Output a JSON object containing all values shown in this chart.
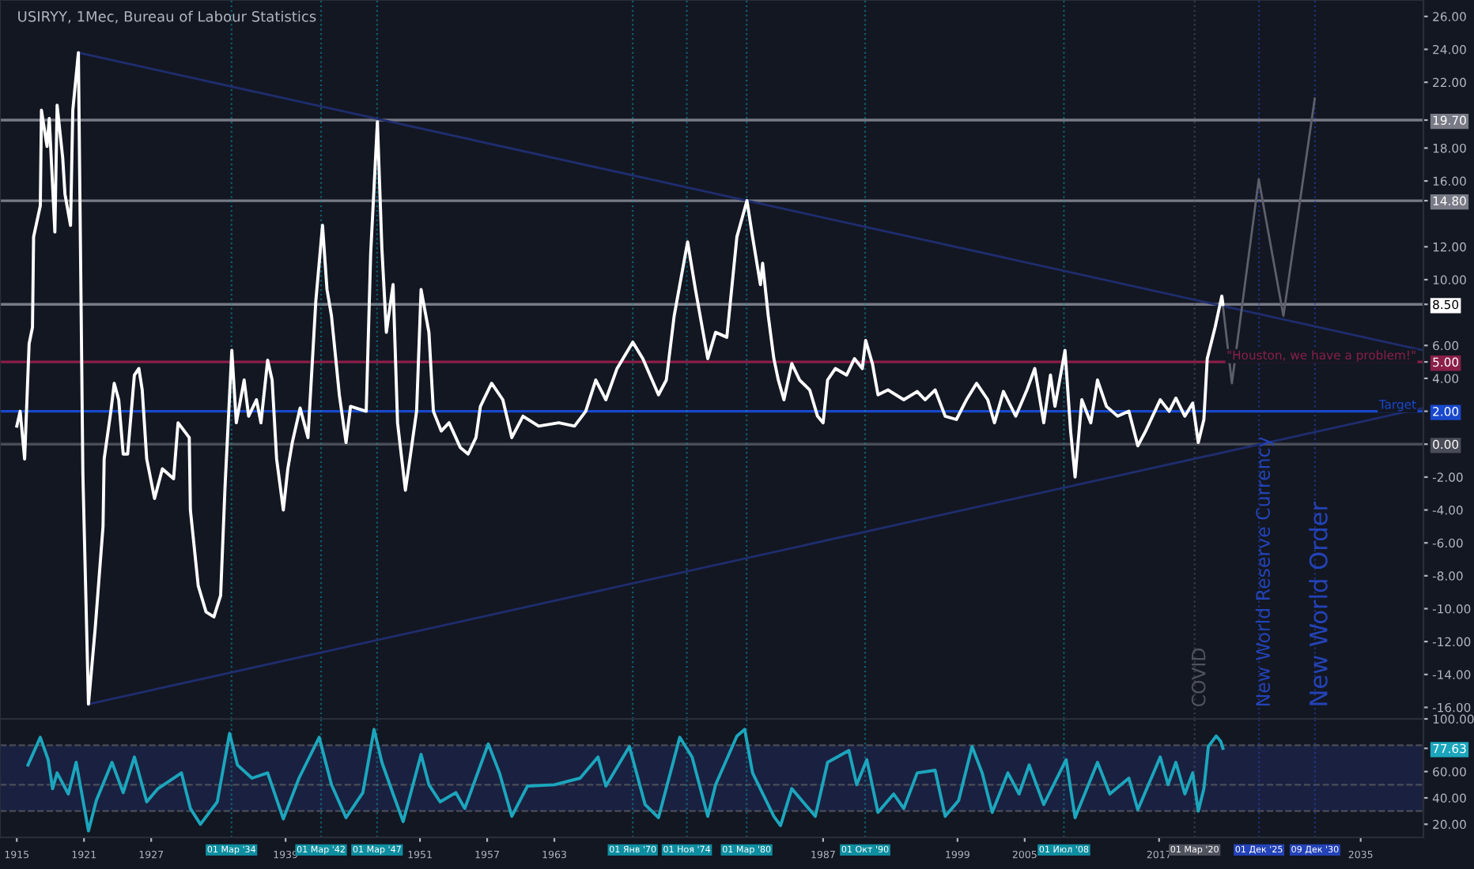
{
  "chart_data": [
    {
      "type": "line",
      "title": "USIRYY, 1Мес, Bureau of Labour Statistics",
      "xlim": [
        1913.5,
        2040.6
      ],
      "ylim": [
        -16.7,
        27.0
      ],
      "tick_labels": "y",
      "yticks": [
        {
          "value": -16,
          "label": "-16.00"
        },
        {
          "value": -14,
          "label": "-14.00"
        },
        {
          "value": -12,
          "label": "-12.00"
        },
        {
          "value": -10,
          "label": "-10.00"
        },
        {
          "value": -8,
          "label": "-8.00"
        },
        {
          "value": -6,
          "label": "-6.00"
        },
        {
          "value": -4,
          "label": "-4.00"
        },
        {
          "value": -2,
          "label": "-2.00"
        },
        {
          "value": 0,
          "label": "0.00"
        },
        {
          "value": 2,
          "label": "2.00"
        },
        {
          "value": 4,
          "label": "4.00"
        },
        {
          "value": 5,
          "label": "5.00"
        },
        {
          "value": 6,
          "label": "6.00"
        },
        {
          "value": 8.5,
          "label": "8.50"
        },
        {
          "value": 10,
          "label": "10.00"
        },
        {
          "value": 12,
          "label": "12.00"
        },
        {
          "value": 14.8,
          "label": "14.80"
        },
        {
          "value": 16,
          "label": "16.00"
        },
        {
          "value": 18,
          "label": "18.00"
        },
        {
          "value": 19.7,
          "label": "19.70"
        },
        {
          "value": 22,
          "label": "22.00"
        },
        {
          "value": 24,
          "label": "24.00"
        },
        {
          "value": 26,
          "label": "26.00"
        }
      ],
      "series": [
        {
          "color": "#ffffff",
          "x": [
            1915.0,
            1915.3,
            1915.7,
            1916.1,
            1916.4,
            1916.5,
            1917.1,
            1917.2,
            1917.7,
            1917.9,
            1918.4,
            1918.6,
            1919.1,
            1919.3,
            1919.8,
            1920.0,
            1920.5,
            1920.9,
            1921.4,
            1922.0,
            1922.7,
            1922.8,
            1923.4,
            1923.7,
            1924.1,
            1924.5,
            1924.9,
            1925.5,
            1925.9,
            1926.2,
            1926.6,
            1927.3,
            1928.0,
            1929.0,
            1929.4,
            1930.4,
            1930.5,
            1931.2,
            1931.9,
            1932.6,
            1933.2,
            1933.6,
            1934.2,
            1934.6,
            1935.3,
            1935.7,
            1936.4,
            1936.8,
            1937.4,
            1937.8,
            1938.2,
            1938.8,
            1939.2,
            1939.6,
            1940.3,
            1941.0,
            1941.7,
            1942.3,
            1942.7,
            1943.1,
            1943.8,
            1944.4,
            1944.8,
            1946.2,
            1946.6,
            1947.2,
            1947.6,
            1948.0,
            1948.6,
            1949.0,
            1949.7,
            1950.1,
            1950.7,
            1951.1,
            1951.8,
            1952.2,
            1952.9,
            1953.6,
            1954.6,
            1955.3,
            1956.0,
            1956.4,
            1957.4,
            1958.4,
            1959.2,
            1960.2,
            1961.6,
            1963.4,
            1964.8,
            1965.8,
            1966.7,
            1967.6,
            1968.6,
            1970.0,
            1970.9,
            1972.3,
            1973.0,
            1973.7,
            1974.9,
            1975.6,
            1976.7,
            1977.4,
            1978.4,
            1979.3,
            1980.2,
            1980.7,
            1981.4,
            1981.6,
            1982.1,
            1982.6,
            1983.0,
            1983.5,
            1984.2,
            1984.9,
            1985.8,
            1986.5,
            1987.0,
            1987.4,
            1988.1,
            1989.1,
            1989.8,
            1990.5,
            1990.8,
            1991.4,
            1991.9,
            1992.8,
            1994.2,
            1995.4,
            1996.1,
            1997.0,
            1997.9,
            1998.9,
            1999.8,
            2000.7,
            2001.7,
            2002.3,
            2003.1,
            2004.2,
            2005.2,
            2005.9,
            2006.7,
            2007.3,
            2007.7,
            2008.6,
            2009.1,
            2009.5,
            2010.1,
            2010.9,
            2011.5,
            2012.3,
            2013.3,
            2014.3,
            2015.1,
            2015.8,
            2017.1,
            2017.9,
            2018.5,
            2019.3,
            2020.0,
            2020.5,
            2021.0,
            2021.3,
            2022.0,
            2022.6,
            2022.7
          ],
          "values": [
            1.1,
            2.0,
            -0.9,
            6.1,
            7.1,
            12.6,
            14.5,
            20.3,
            18.1,
            19.8,
            12.9,
            20.6,
            17.4,
            15.2,
            13.3,
            20.3,
            23.8,
            -1.8,
            -15.8,
            -11.2,
            -5.0,
            -0.9,
            2.0,
            3.7,
            2.7,
            -0.6,
            -0.6,
            4.2,
            4.6,
            3.3,
            -0.9,
            -3.3,
            -1.5,
            -2.1,
            1.3,
            0.4,
            -4.0,
            -8.6,
            -10.2,
            -10.5,
            -9.2,
            -2.5,
            5.7,
            1.3,
            3.9,
            1.7,
            2.7,
            1.3,
            5.1,
            3.9,
            -0.9,
            -4.0,
            -1.5,
            0.1,
            2.2,
            0.4,
            8.7,
            13.3,
            9.4,
            7.8,
            3.0,
            0.1,
            2.3,
            2.0,
            11.6,
            19.6,
            11.9,
            6.8,
            9.7,
            1.3,
            -2.8,
            -0.9,
            2.0,
            9.4,
            6.8,
            2.0,
            0.8,
            1.3,
            -0.2,
            -0.6,
            0.4,
            2.3,
            3.7,
            2.7,
            0.4,
            1.7,
            1.1,
            1.3,
            1.1,
            2.0,
            3.9,
            2.7,
            4.6,
            6.2,
            5.2,
            3.0,
            3.9,
            7.8,
            12.3,
            9.4,
            5.2,
            6.8,
            6.5,
            12.6,
            14.8,
            12.6,
            9.7,
            11.0,
            7.8,
            5.2,
            3.9,
            2.7,
            4.9,
            3.9,
            3.3,
            1.7,
            1.3,
            3.9,
            4.6,
            4.2,
            5.2,
            4.6,
            6.3,
            4.9,
            3.0,
            3.3,
            2.7,
            3.2,
            2.7,
            3.3,
            1.7,
            1.5,
            2.7,
            3.7,
            2.7,
            1.3,
            3.2,
            1.7,
            3.3,
            4.6,
            1.3,
            4.2,
            2.3,
            5.7,
            0.8,
            -2.0,
            2.7,
            1.3,
            3.9,
            2.3,
            1.7,
            2.0,
            -0.1,
            0.8,
            2.7,
            2.0,
            2.8,
            1.7,
            2.5,
            0.1,
            1.5,
            5.2,
            7.1,
            9.0,
            8.5
          ]
        },
        {
          "type": "line",
          "color": "#1f2d6e",
          "x": [
            1920.5,
            2040.6
          ],
          "values": [
            23.8,
            5.7
          ]
        },
        {
          "type": "line",
          "color": "#1f2d6e",
          "x": [
            1921.4,
            2040.6
          ],
          "values": [
            -15.8,
            2.2
          ]
        },
        {
          "type": "line",
          "color": "#5d606b",
          "x": [
            2022.6,
            2023.5,
            2025.9,
            2028.1,
            2030.9
          ],
          "values": [
            9.0,
            3.7,
            16.1,
            7.8,
            21.0
          ]
        }
      ],
      "ref_lines": [
        {
          "axis": "y",
          "value": 19.7,
          "color": "#787b86",
          "line_style": "solid"
        },
        {
          "axis": "y",
          "value": 14.8,
          "color": "#787b86",
          "line_style": "solid"
        },
        {
          "axis": "y",
          "value": 8.5,
          "color": "#787b86",
          "line_style": "solid"
        },
        {
          "axis": "y",
          "value": 5.0,
          "label": "\"Houston, we have a problem!\"",
          "color": "#8a1f48",
          "line_style": "solid"
        },
        {
          "axis": "y",
          "value": 2.0,
          "label": "Target",
          "color": "#1848cc",
          "line_style": "solid"
        },
        {
          "axis": "y",
          "value": 0.0,
          "color": "#4a4d57",
          "line_style": "solid"
        },
        {
          "axis": "x",
          "value": 1934.17,
          "color": "#0e8ea0",
          "line_style": "dotted"
        },
        {
          "axis": "x",
          "value": 1942.17,
          "color": "#0e8ea0",
          "line_style": "dotted"
        },
        {
          "axis": "x",
          "value": 1947.17,
          "color": "#0e8ea0",
          "line_style": "dotted"
        },
        {
          "axis": "x",
          "value": 1970.0,
          "color": "#0e8ea0",
          "line_style": "dotted"
        },
        {
          "axis": "x",
          "value": 1974.83,
          "color": "#0e8ea0",
          "line_style": "dotted"
        },
        {
          "axis": "x",
          "value": 1980.17,
          "color": "#0e8ea0",
          "line_style": "dotted"
        },
        {
          "axis": "x",
          "value": 1990.75,
          "color": "#0e8ea0",
          "line_style": "dotted"
        },
        {
          "axis": "x",
          "value": 2008.5,
          "color": "#0e8ea0",
          "line_style": "dotted"
        },
        {
          "axis": "x",
          "value": 2020.17,
          "color": "#50535e",
          "line_style": "dotted"
        },
        {
          "axis": "x",
          "value": 2025.92,
          "color": "#2443b8",
          "line_style": "dotted"
        },
        {
          "axis": "x",
          "value": 2030.92,
          "color": "#2443b8",
          "line_style": "dotted"
        }
      ],
      "annotations": [
        {
          "text": "COVID",
          "x": 2020.17,
          "y": -16
        },
        {
          "text": "New World Reserve Currency",
          "x": 2025.92,
          "y": -16
        },
        {
          "text": "New World Order",
          "x": 2030.92,
          "y": -16
        }
      ]
    },
    {
      "type": "line",
      "xlim": [
        1913.5,
        2040.6
      ],
      "ylim": [
        10,
        100
      ],
      "xticks": [
        1915,
        1921,
        1927,
        1939,
        1951,
        1957,
        1963,
        1987,
        1999,
        2005,
        2017,
        2035
      ],
      "yticks": [
        {
          "value": 20,
          "label": "20.00"
        },
        {
          "value": 40,
          "label": "40.00"
        },
        {
          "value": 60,
          "label": "60.00"
        },
        {
          "value": 77.63,
          "label": "77.63"
        },
        {
          "value": 100,
          "label": "100.00"
        }
      ],
      "series": [
        {
          "color": "#1ca6bd",
          "x": [
            1916.0,
            1917.1,
            1917.8,
            1918.2,
            1918.6,
            1919.6,
            1920.3,
            1921.4,
            1922.1,
            1923.5,
            1924.5,
            1925.5,
            1926.6,
            1927.6,
            1929.7,
            1930.5,
            1931.4,
            1932.9,
            1934.0,
            1934.7,
            1936.0,
            1937.4,
            1938.8,
            1940.2,
            1942.0,
            1943.1,
            1944.4,
            1945.9,
            1946.9,
            1947.6,
            1948.6,
            1949.5,
            1951.1,
            1951.8,
            1952.8,
            1954.2,
            1955.0,
            1957.1,
            1958.1,
            1959.2,
            1960.6,
            1963.0,
            1965.3,
            1966.9,
            1967.6,
            1969.7,
            1971.1,
            1972.3,
            1974.2,
            1975.3,
            1976.7,
            1977.4,
            1979.3,
            1980.0,
            1980.7,
            1982.6,
            1983.2,
            1984.2,
            1986.3,
            1987.4,
            1989.3,
            1990.0,
            1990.9,
            1991.9,
            1993.3,
            1994.2,
            1995.4,
            1997.0,
            1997.9,
            1999.1,
            2000.3,
            2001.2,
            2002.1,
            2003.5,
            2004.5,
            2005.4,
            2006.7,
            2008.7,
            2009.5,
            2011.5,
            2012.6,
            2014.3,
            2015.1,
            2017.1,
            2017.8,
            2018.5,
            2019.3,
            2020.0,
            2020.5,
            2021.0,
            2021.4,
            2022.1,
            2022.5,
            2022.7
          ],
          "values": [
            65,
            86,
            69,
            47,
            59,
            43,
            67,
            15,
            38,
            67,
            44,
            71,
            37,
            47,
            59,
            32,
            20,
            37,
            89,
            65,
            55,
            59,
            24,
            55,
            86,
            50,
            25,
            44,
            92,
            67,
            43,
            22,
            73,
            50,
            37,
            44,
            32,
            81,
            59,
            26,
            49,
            50,
            55,
            71,
            49,
            79,
            35,
            25,
            86,
            71,
            26,
            50,
            87,
            92,
            59,
            26,
            19,
            47,
            26,
            67,
            76,
            50,
            69,
            29,
            43,
            32,
            59,
            61,
            26,
            38,
            79,
            59,
            29,
            59,
            43,
            65,
            35,
            69,
            25,
            67,
            43,
            55,
            31,
            71,
            50,
            67,
            43,
            59,
            30,
            47,
            79,
            87,
            83,
            77.63
          ]
        }
      ],
      "bands": [
        {
          "axis": "y",
          "from": 30,
          "to": 80,
          "color": "#1a2140"
        }
      ],
      "ref_lines": [
        {
          "axis": "y",
          "value": 80,
          "color": "#4a4d57",
          "line_style": "dashed"
        },
        {
          "axis": "y",
          "value": 50,
          "color": "#4a4d57",
          "line_style": "dashed"
        },
        {
          "axis": "y",
          "value": 30,
          "color": "#4a4d57",
          "line_style": "dashed"
        },
        {
          "axis": "x",
          "value": 1934.17,
          "label": "01 Мар '34",
          "color": "#0e8ea0",
          "line_style": "dotted"
        },
        {
          "axis": "x",
          "value": 1942.17,
          "label": "01 Мар '42",
          "color": "#0e8ea0",
          "line_style": "dotted"
        },
        {
          "axis": "x",
          "value": 1947.17,
          "label": "01 Мар '47",
          "color": "#0e8ea0",
          "line_style": "dotted"
        },
        {
          "axis": "x",
          "value": 1970.0,
          "label": "01 Янв '70",
          "color": "#0e8ea0",
          "line_style": "dotted"
        },
        {
          "axis": "x",
          "value": 1974.83,
          "label": "01 Ноя '74",
          "color": "#0e8ea0",
          "line_style": "dotted"
        },
        {
          "axis": "x",
          "value": 1980.17,
          "label": "01 Мар '80",
          "color": "#0e8ea0",
          "line_style": "dotted"
        },
        {
          "axis": "x",
          "value": 1990.75,
          "label": "01 Окт '90",
          "color": "#0e8ea0",
          "line_style": "dotted"
        },
        {
          "axis": "x",
          "value": 2008.5,
          "label": "01 Июл '08",
          "color": "#0e8ea0",
          "line_style": "dotted"
        },
        {
          "axis": "x",
          "value": 2020.17,
          "label": "01 Мар '20",
          "color": "#50535e",
          "line_style": "dotted"
        },
        {
          "axis": "x",
          "value": 2025.92,
          "label": "01 Дек '25",
          "color": "#2443b8",
          "line_style": "dotted"
        },
        {
          "axis": "x",
          "value": 2030.92,
          "label": "09 Дек '30",
          "color": "#2443b8",
          "line_style": "dotted"
        }
      ]
    }
  ]
}
